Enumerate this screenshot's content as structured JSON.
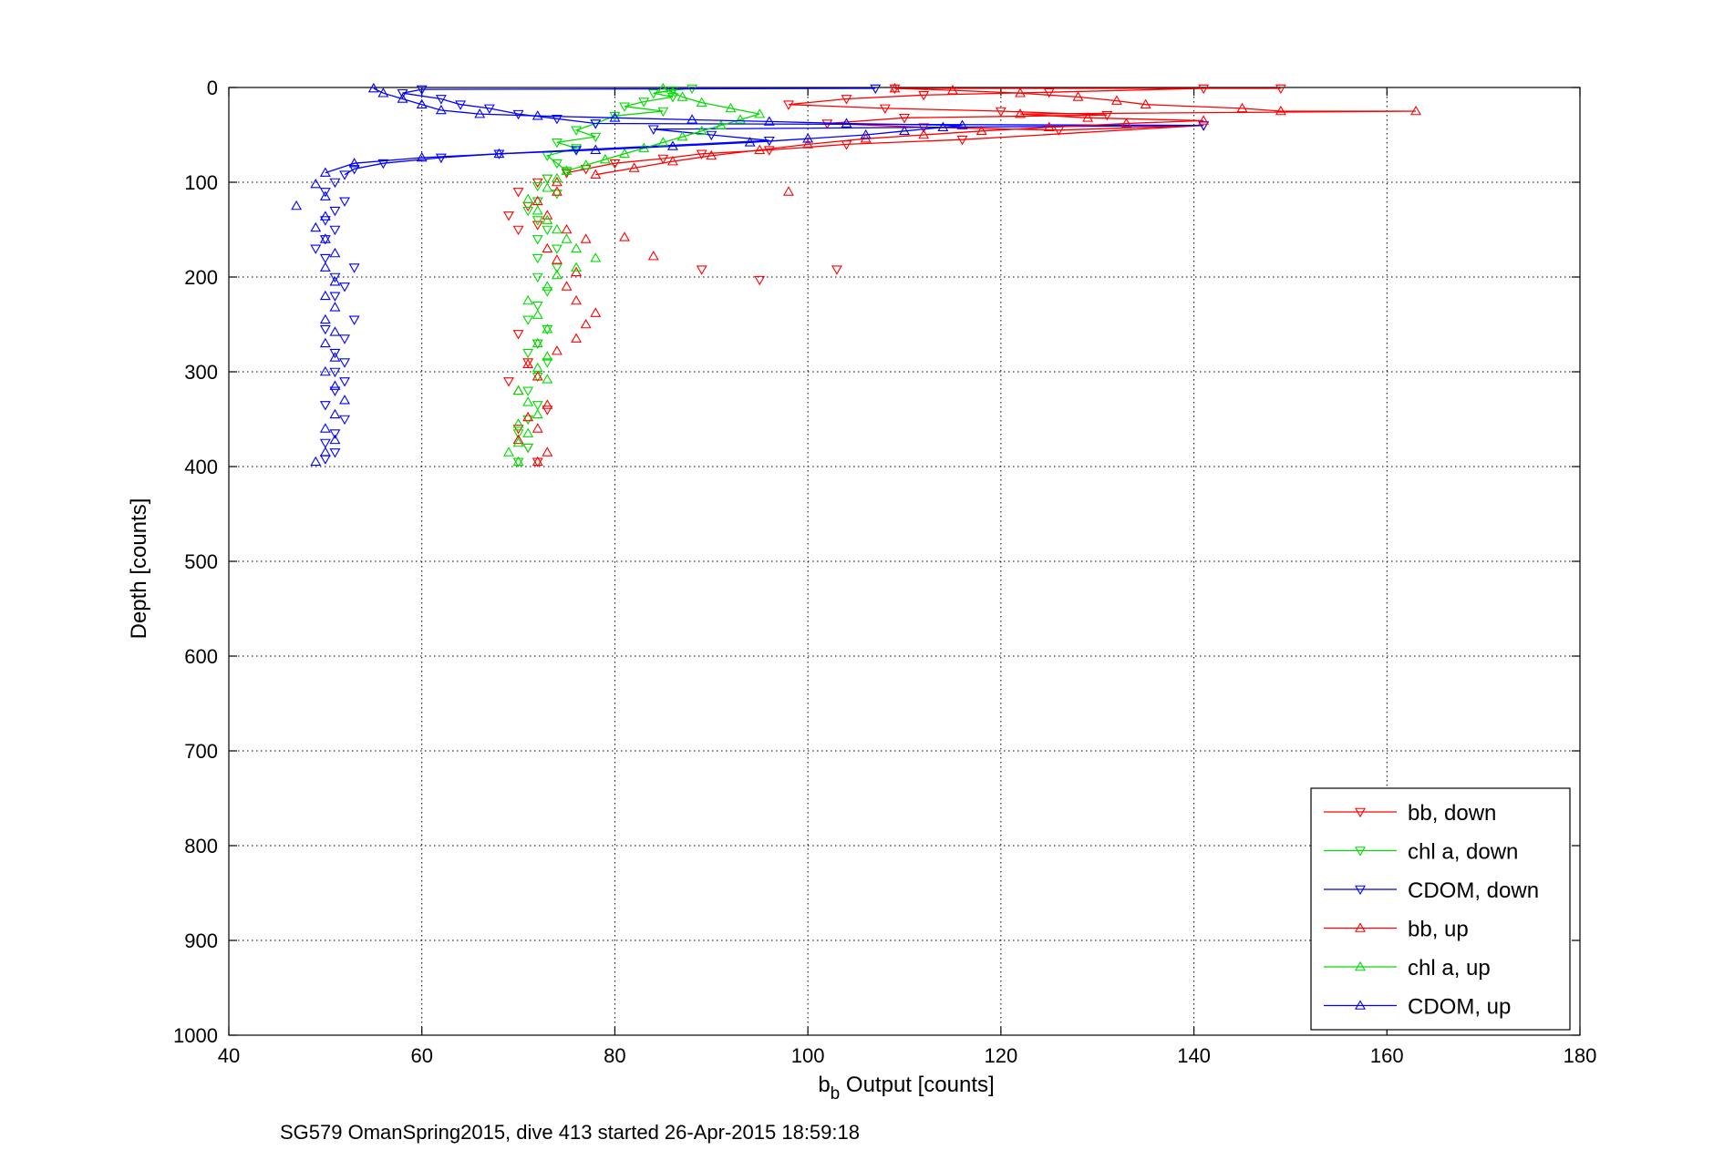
{
  "chart_data": {
    "type": "line",
    "xlabel": "b_b Output [counts]",
    "xlabel_main": "b",
    "xlabel_sub": "b",
    "xlabel_rest": " Output [counts]",
    "ylabel": "Depth [counts]",
    "caption": "SG579 OmanSpring2015, dive 413 started 26-Apr-2015 18:59:18",
    "xlim": [
      40,
      180
    ],
    "ylim": [
      0,
      1000
    ],
    "y_reversed": true,
    "grid": true,
    "legend_position": "bottom-right",
    "xticks": [
      40,
      60,
      80,
      100,
      120,
      140,
      160,
      180
    ],
    "yticks": [
      0,
      100,
      200,
      300,
      400,
      500,
      600,
      700,
      800,
      900,
      1000
    ],
    "series": [
      {
        "name": "bb, down",
        "color": "#ff0000",
        "marker": "triangle-down",
        "points": [
          [
            109,
            1
          ],
          [
            149,
            1
          ],
          [
            141,
            1
          ],
          [
            125,
            5
          ],
          [
            112,
            8
          ],
          [
            104,
            12
          ],
          [
            98,
            18
          ],
          [
            108,
            22
          ],
          [
            120,
            25
          ],
          [
            131,
            29
          ],
          [
            110,
            32
          ],
          [
            102,
            38
          ],
          [
            112,
            42
          ],
          [
            126,
            45
          ],
          [
            141,
            40
          ],
          [
            116,
            55
          ],
          [
            104,
            60
          ],
          [
            96,
            66
          ],
          [
            89,
            70
          ],
          [
            85,
            75
          ],
          [
            80,
            80
          ],
          [
            77,
            86
          ],
          [
            75,
            90
          ],
          [
            73,
            96
          ],
          [
            72,
            100
          ],
          [
            70,
            110
          ],
          [
            71,
            125
          ],
          [
            69,
            135
          ],
          [
            72,
            145
          ],
          [
            70,
            150
          ],
          [
            103,
            192
          ],
          [
            89,
            192
          ],
          [
            95,
            203
          ],
          [
            70,
            260
          ],
          [
            72,
            270
          ],
          [
            71,
            290
          ],
          [
            69,
            310
          ],
          [
            73,
            340
          ],
          [
            70,
            360
          ],
          [
            71,
            380
          ],
          [
            72,
            395
          ]
        ]
      },
      {
        "name": "chl a, down",
        "color": "#00dd00",
        "marker": "triangle-down",
        "points": [
          [
            88,
            1
          ],
          [
            86,
            3
          ],
          [
            84,
            6
          ],
          [
            86,
            10
          ],
          [
            83,
            15
          ],
          [
            81,
            20
          ],
          [
            85,
            25
          ],
          [
            80,
            30
          ],
          [
            78,
            38
          ],
          [
            76,
            45
          ],
          [
            78,
            52
          ],
          [
            74,
            58
          ],
          [
            76,
            64
          ],
          [
            73,
            72
          ],
          [
            74,
            80
          ],
          [
            75,
            88
          ],
          [
            73,
            96
          ],
          [
            72,
            104
          ],
          [
            74,
            112
          ],
          [
            72,
            120
          ],
          [
            71,
            130
          ],
          [
            72,
            140
          ],
          [
            73,
            150
          ],
          [
            72,
            160
          ],
          [
            74,
            170
          ],
          [
            72,
            180
          ],
          [
            74,
            190
          ],
          [
            72,
            200
          ],
          [
            73,
            215
          ],
          [
            72,
            230
          ],
          [
            71,
            245
          ],
          [
            73,
            255
          ],
          [
            72,
            270
          ],
          [
            71,
            280
          ],
          [
            73,
            290
          ],
          [
            72,
            305
          ],
          [
            71,
            320
          ],
          [
            72,
            335
          ],
          [
            71,
            350
          ],
          [
            70,
            365
          ],
          [
            71,
            380
          ],
          [
            70,
            395
          ]
        ]
      },
      {
        "name": "CDOM, down",
        "color": "#0000ff",
        "marker": "triangle-down",
        "points": [
          [
            107,
            1
          ],
          [
            60,
            2
          ],
          [
            58,
            6
          ],
          [
            62,
            12
          ],
          [
            64,
            18
          ],
          [
            67,
            22
          ],
          [
            70,
            28
          ],
          [
            74,
            33
          ],
          [
            78,
            38
          ],
          [
            141,
            40
          ],
          [
            84,
            44
          ],
          [
            90,
            50
          ],
          [
            96,
            56
          ],
          [
            76,
            66
          ],
          [
            68,
            70
          ],
          [
            62,
            74
          ],
          [
            56,
            80
          ],
          [
            53,
            86
          ],
          [
            52,
            92
          ],
          [
            51,
            100
          ],
          [
            50,
            110
          ],
          [
            52,
            120
          ],
          [
            51,
            130
          ],
          [
            50,
            140
          ],
          [
            51,
            150
          ],
          [
            50,
            160
          ],
          [
            49,
            170
          ],
          [
            50,
            180
          ],
          [
            53,
            190
          ],
          [
            51,
            200
          ],
          [
            52,
            210
          ],
          [
            51,
            220
          ],
          [
            53,
            245
          ],
          [
            50,
            255
          ],
          [
            52,
            265
          ],
          [
            51,
            280
          ],
          [
            52,
            290
          ],
          [
            51,
            300
          ],
          [
            52,
            310
          ],
          [
            51,
            320
          ],
          [
            50,
            335
          ],
          [
            52,
            350
          ],
          [
            51,
            365
          ],
          [
            50,
            375
          ],
          [
            51,
            385
          ],
          [
            50,
            392
          ]
        ]
      },
      {
        "name": "bb, up",
        "color": "#ff0000",
        "marker": "triangle-up",
        "points": [
          [
            72,
            395
          ],
          [
            73,
            385
          ],
          [
            70,
            372
          ],
          [
            72,
            360
          ],
          [
            71,
            348
          ],
          [
            73,
            335
          ],
          [
            70,
            320
          ],
          [
            72,
            305
          ],
          [
            71,
            292
          ],
          [
            74,
            278
          ],
          [
            76,
            265
          ],
          [
            77,
            250
          ],
          [
            78,
            238
          ],
          [
            76,
            225
          ],
          [
            75,
            210
          ],
          [
            76,
            195
          ],
          [
            74,
            182
          ],
          [
            73,
            170
          ],
          [
            77,
            160
          ],
          [
            81,
            158
          ],
          [
            84,
            178
          ],
          [
            75,
            150
          ],
          [
            73,
            135
          ],
          [
            72,
            120
          ],
          [
            74,
            110
          ],
          [
            98,
            110
          ],
          [
            74,
            100
          ],
          [
            78,
            92
          ],
          [
            82,
            85
          ],
          [
            86,
            78
          ],
          [
            90,
            72
          ],
          [
            95,
            66
          ],
          [
            100,
            60
          ],
          [
            106,
            54
          ],
          [
            112,
            50
          ],
          [
            118,
            46
          ],
          [
            125,
            42
          ],
          [
            133,
            38
          ],
          [
            141,
            35
          ],
          [
            129,
            32
          ],
          [
            122,
            28
          ],
          [
            163,
            25
          ],
          [
            149,
            25
          ],
          [
            145,
            22
          ],
          [
            135,
            18
          ],
          [
            132,
            14
          ],
          [
            128,
            10
          ],
          [
            122,
            6
          ],
          [
            115,
            3
          ],
          [
            109,
            1
          ]
        ]
      },
      {
        "name": "chl a, up",
        "color": "#00dd00",
        "marker": "triangle-up",
        "points": [
          [
            70,
            395
          ],
          [
            69,
            385
          ],
          [
            70,
            375
          ],
          [
            71,
            365
          ],
          [
            70,
            355
          ],
          [
            72,
            345
          ],
          [
            71,
            332
          ],
          [
            70,
            320
          ],
          [
            73,
            308
          ],
          [
            72,
            296
          ],
          [
            73,
            284
          ],
          [
            72,
            270
          ],
          [
            73,
            255
          ],
          [
            72,
            240
          ],
          [
            71,
            225
          ],
          [
            73,
            210
          ],
          [
            74,
            198
          ],
          [
            76,
            190
          ],
          [
            78,
            180
          ],
          [
            76,
            170
          ],
          [
            75,
            160
          ],
          [
            74,
            150
          ],
          [
            73,
            140
          ],
          [
            72,
            130
          ],
          [
            71,
            118
          ],
          [
            73,
            106
          ],
          [
            74,
            96
          ],
          [
            75,
            88
          ],
          [
            77,
            82
          ],
          [
            79,
            76
          ],
          [
            81,
            70
          ],
          [
            83,
            64
          ],
          [
            85,
            58
          ],
          [
            87,
            52
          ],
          [
            89,
            46
          ],
          [
            91,
            40
          ],
          [
            93,
            34
          ],
          [
            95,
            28
          ],
          [
            92,
            22
          ],
          [
            89,
            16
          ],
          [
            87,
            10
          ],
          [
            86,
            5
          ],
          [
            85,
            1
          ]
        ]
      },
      {
        "name": "CDOM, up",
        "color": "#0000ff",
        "marker": "triangle-up",
        "points": [
          [
            49,
            395
          ],
          [
            50,
            385
          ],
          [
            51,
            372
          ],
          [
            50,
            360
          ],
          [
            51,
            345
          ],
          [
            52,
            330
          ],
          [
            51,
            315
          ],
          [
            50,
            300
          ],
          [
            51,
            285
          ],
          [
            50,
            270
          ],
          [
            51,
            258
          ],
          [
            50,
            245
          ],
          [
            51,
            232
          ],
          [
            50,
            220
          ],
          [
            51,
            205
          ],
          [
            50,
            190
          ],
          [
            51,
            175
          ],
          [
            50,
            160
          ],
          [
            49,
            148
          ],
          [
            50,
            136
          ],
          [
            47,
            125
          ],
          [
            50,
            115
          ],
          [
            49,
            102
          ],
          [
            50,
            90
          ],
          [
            53,
            80
          ],
          [
            60,
            74
          ],
          [
            68,
            70
          ],
          [
            78,
            66
          ],
          [
            86,
            62
          ],
          [
            94,
            58
          ],
          [
            100,
            54
          ],
          [
            106,
            50
          ],
          [
            110,
            46
          ],
          [
            114,
            42
          ],
          [
            116,
            40
          ],
          [
            104,
            38
          ],
          [
            96,
            36
          ],
          [
            88,
            34
          ],
          [
            80,
            32
          ],
          [
            72,
            30
          ],
          [
            66,
            28
          ],
          [
            62,
            24
          ],
          [
            60,
            18
          ],
          [
            58,
            12
          ],
          [
            56,
            6
          ],
          [
            55,
            1
          ]
        ]
      }
    ]
  }
}
